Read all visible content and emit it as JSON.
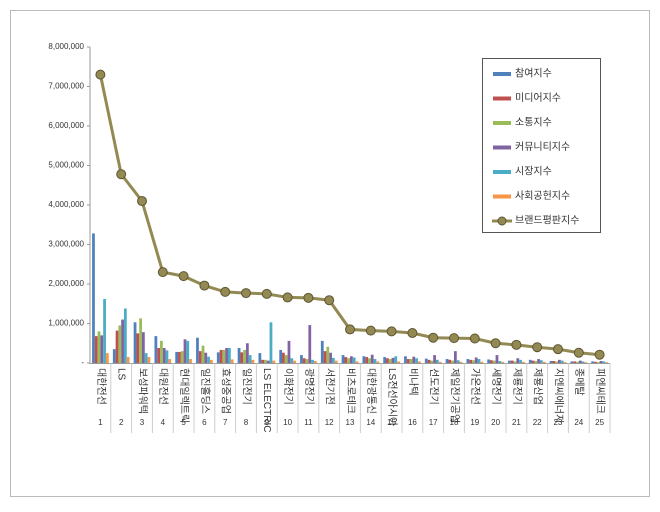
{
  "chart_data": {
    "type": "bar_line",
    "categories": [
      "대한전선",
      "LS",
      "보성파워텍",
      "대원전선",
      "현대일렉트릭",
      "일진홀딩스",
      "효성중공업",
      "일진전기",
      "LS ELECTRIC",
      "이화전기",
      "광명전기",
      "서전기전",
      "비츠로테크",
      "대한광통신",
      "LS전선아시아",
      "비나텍",
      "선도전기",
      "제일전기공업",
      "가온전선",
      "세명전기",
      "제룡전기",
      "제룡산업",
      "지엔씨에너지",
      "종메탈",
      "피엔씨테크"
    ],
    "category_numbers": [
      1,
      2,
      3,
      4,
      5,
      6,
      7,
      8,
      9,
      10,
      11,
      12,
      13,
      14,
      15,
      16,
      17,
      18,
      19,
      20,
      21,
      22,
      23,
      24,
      25
    ],
    "series": [
      {
        "name": "참여지수",
        "color": "#4f81bd",
        "values": [
          3280000,
          350000,
          1030000,
          680000,
          280000,
          640000,
          270000,
          380000,
          250000,
          330000,
          200000,
          560000,
          200000,
          170000,
          150000,
          170000,
          110000,
          100000,
          100000,
          90000,
          60000,
          80000,
          50000,
          40000,
          40000
        ]
      },
      {
        "name": "미디어지수",
        "color": "#c0504d",
        "values": [
          680000,
          820000,
          750000,
          380000,
          280000,
          300000,
          330000,
          270000,
          80000,
          260000,
          120000,
          300000,
          150000,
          150000,
          120000,
          100000,
          80000,
          80000,
          80000,
          70000,
          60000,
          60000,
          50000,
          40000,
          30000
        ]
      },
      {
        "name": "소통지수",
        "color": "#9bbb59",
        "values": [
          800000,
          950000,
          1130000,
          560000,
          300000,
          440000,
          330000,
          330000,
          80000,
          200000,
          100000,
          410000,
          120000,
          120000,
          100000,
          100000,
          60000,
          60000,
          70000,
          60000,
          40000,
          50000,
          40000,
          30000,
          20000
        ]
      },
      {
        "name": "커뮤니티지수",
        "color": "#8064a2",
        "values": [
          700000,
          1100000,
          780000,
          380000,
          600000,
          260000,
          380000,
          500000,
          60000,
          560000,
          960000,
          260000,
          170000,
          210000,
          130000,
          160000,
          200000,
          300000,
          140000,
          200000,
          120000,
          100000,
          80000,
          60000,
          50000
        ]
      },
      {
        "name": "시장지수",
        "color": "#4bacc6",
        "values": [
          1620000,
          1380000,
          250000,
          320000,
          560000,
          160000,
          380000,
          200000,
          1030000,
          120000,
          80000,
          130000,
          140000,
          100000,
          170000,
          120000,
          80000,
          70000,
          100000,
          50000,
          80000,
          70000,
          60000,
          40000,
          40000
        ]
      },
      {
        "name": "사회공헌지수",
        "color": "#f79646",
        "values": [
          250000,
          150000,
          150000,
          100000,
          100000,
          80000,
          90000,
          80000,
          60000,
          60000,
          50000,
          60000,
          40000,
          40000,
          40000,
          40000,
          30000,
          30000,
          30000,
          30000,
          30000,
          30000,
          20000,
          20000,
          20000
        ]
      },
      {
        "name": "브랜드평판지수",
        "color": "#938953",
        "kind": "line",
        "values": [
          7300000,
          4780000,
          4100000,
          2300000,
          2200000,
          1960000,
          1800000,
          1770000,
          1750000,
          1660000,
          1650000,
          1590000,
          850000,
          820000,
          800000,
          760000,
          640000,
          630000,
          620000,
          500000,
          460000,
          400000,
          350000,
          260000,
          210000
        ]
      }
    ],
    "ylim": [
      0,
      8000000
    ],
    "yticks": [
      {
        "value": 0,
        "label": "-"
      },
      {
        "value": 1000000,
        "label": "1,000,000"
      },
      {
        "value": 2000000,
        "label": "2,000,000"
      },
      {
        "value": 3000000,
        "label": "3,000,000"
      },
      {
        "value": 4000000,
        "label": "4,000,000"
      },
      {
        "value": 5000000,
        "label": "5,000,000"
      },
      {
        "value": 6000000,
        "label": "6,000,000"
      },
      {
        "value": 7000000,
        "label": "7,000,000"
      },
      {
        "value": 8000000,
        "label": "8,000,000"
      }
    ],
    "grid": false
  }
}
